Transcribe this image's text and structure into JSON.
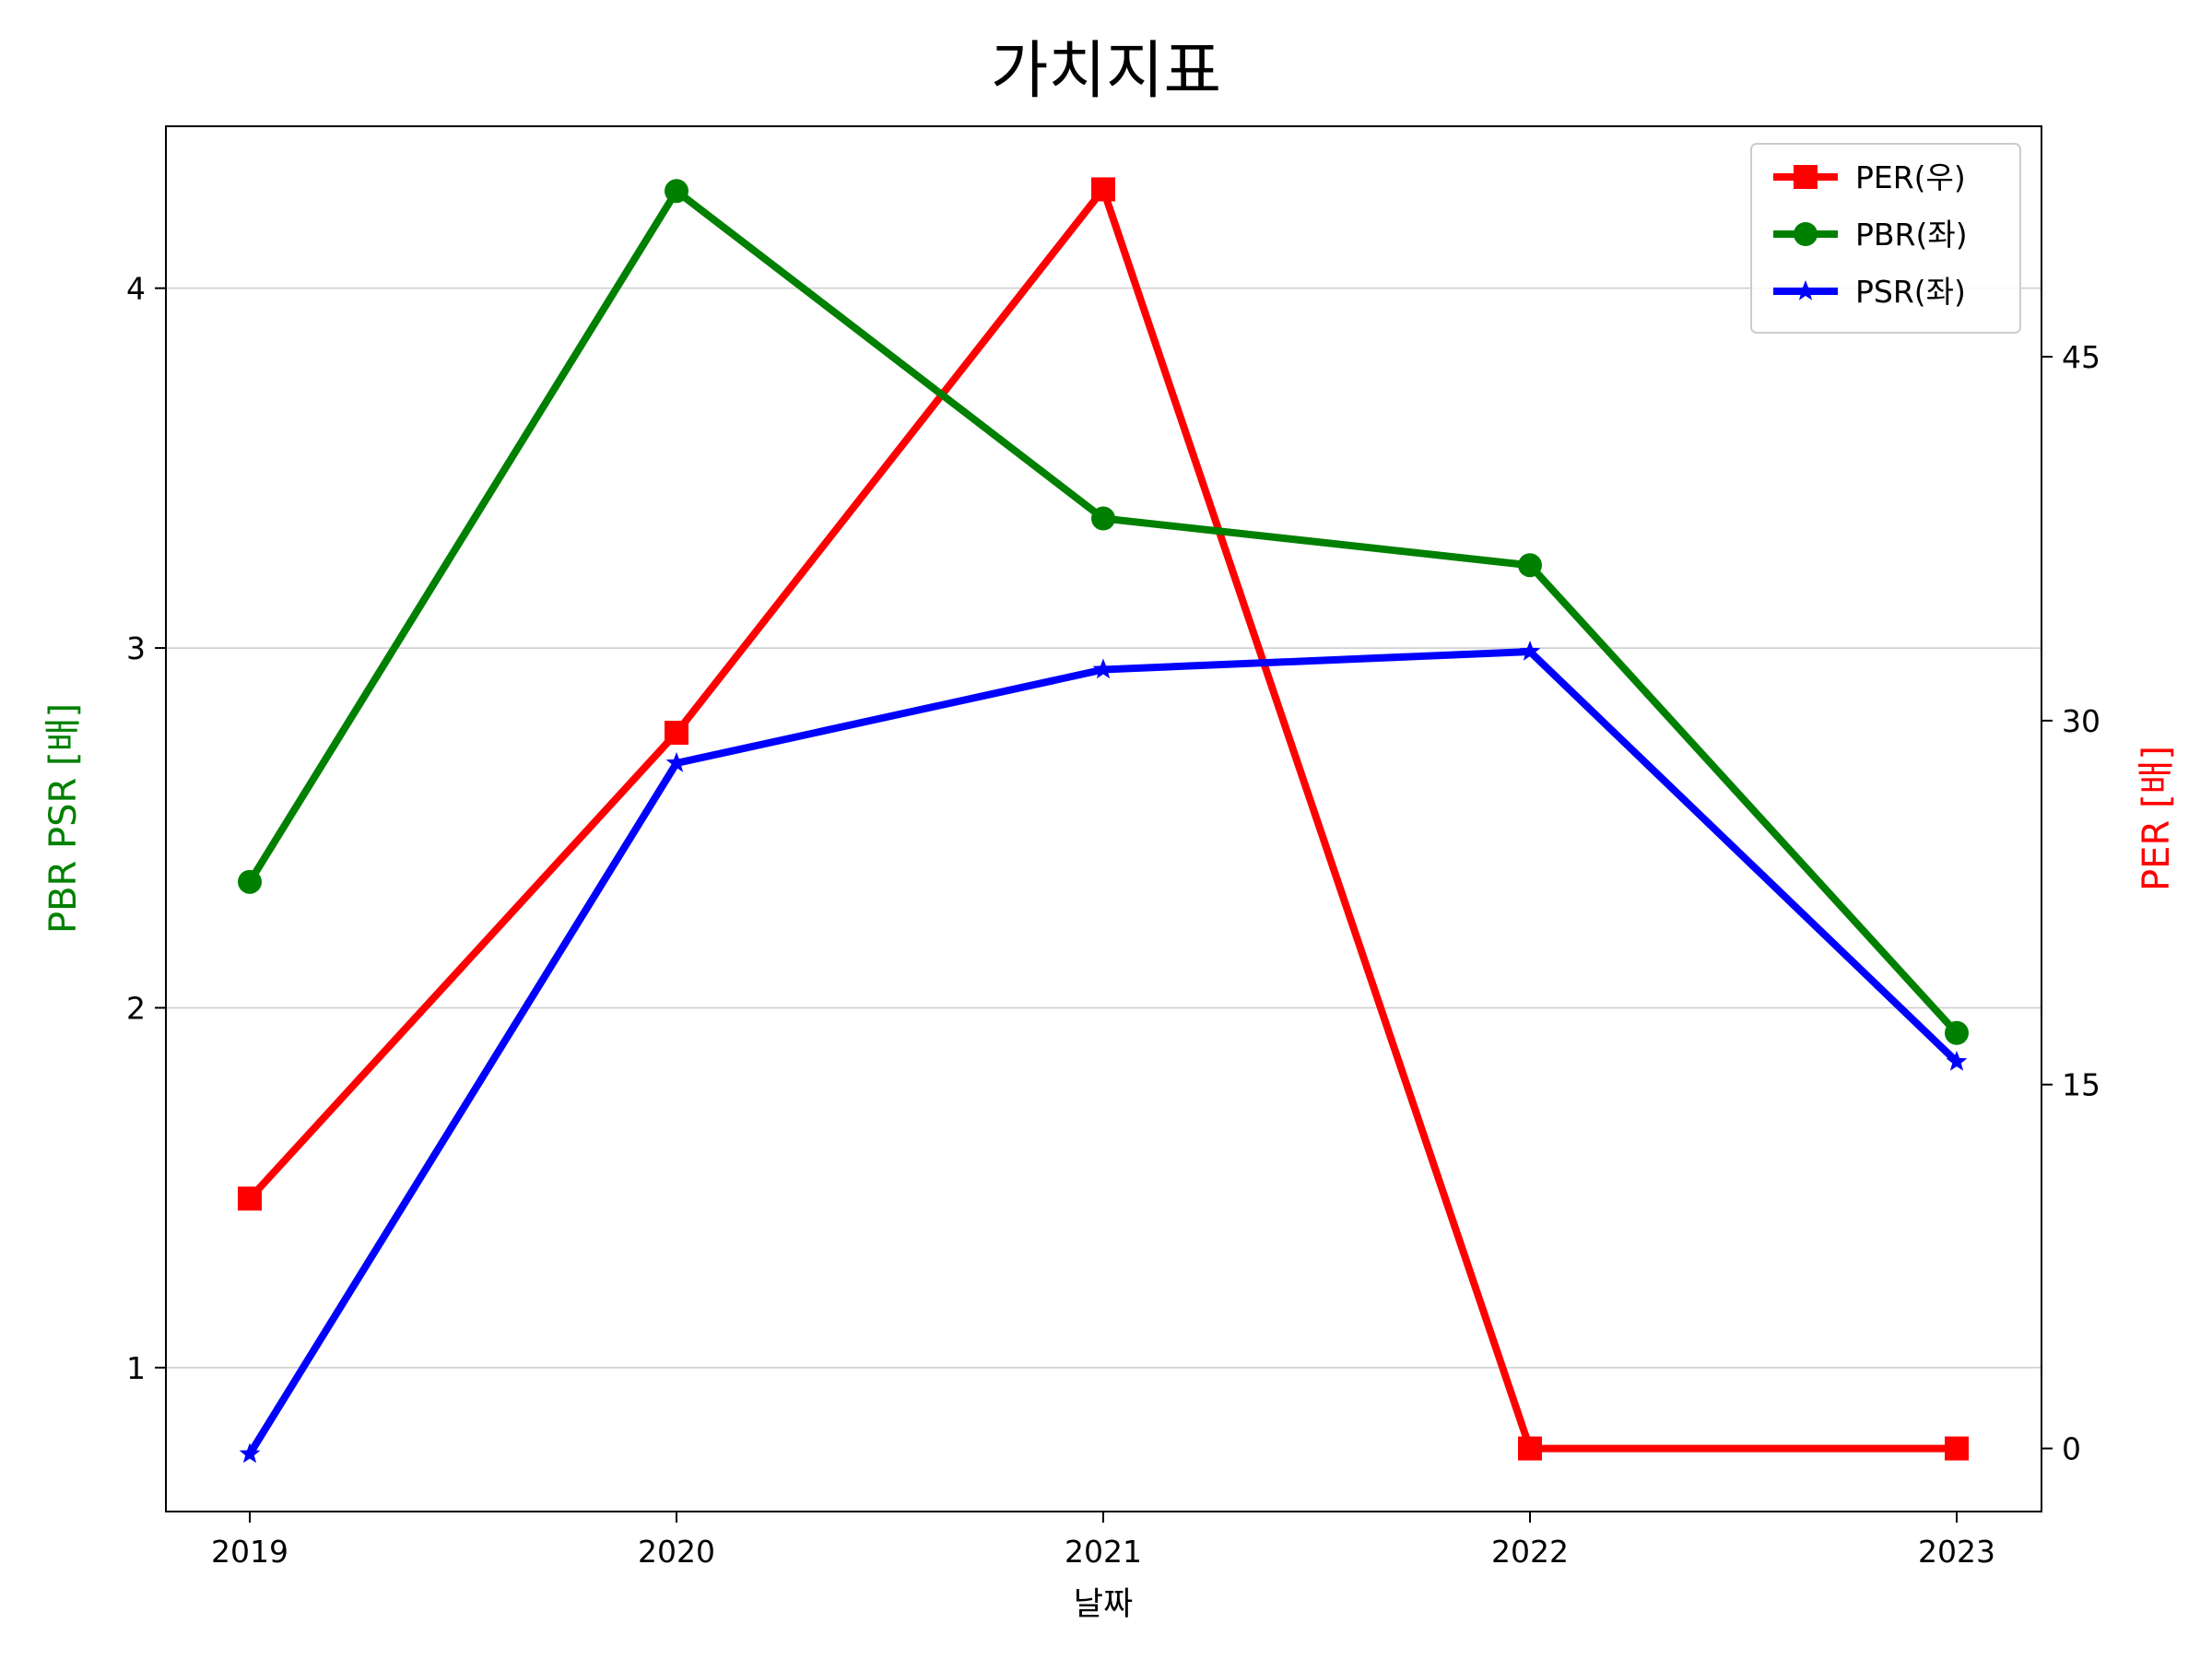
{
  "chart_data": {
    "type": "line",
    "title": "가치지표",
    "xlabel": "날짜",
    "categories": [
      "2019",
      "2020",
      "2021",
      "2022",
      "2023"
    ],
    "left_axis": {
      "label": "PBR PSR [배]",
      "label_color": "#008000",
      "range": [
        0.6,
        4.45
      ],
      "ticks": [
        1,
        2,
        3,
        4
      ]
    },
    "right_axis": {
      "label": "PER [배]",
      "label_color": "#ff0000",
      "range": [
        -2.6,
        54.5
      ],
      "ticks": [
        0,
        15,
        30,
        45
      ]
    },
    "grid": "horizontal (left axis)",
    "legend_position": "upper right",
    "series": [
      {
        "name": "PER(우)",
        "axis": "right",
        "color": "#ff0000",
        "marker": "square",
        "values": [
          10.3,
          29.5,
          51.9,
          0.0,
          0.0
        ]
      },
      {
        "name": "PBR(좌)",
        "axis": "left",
        "color": "#008000",
        "marker": "circle",
        "values": [
          2.35,
          4.27,
          3.36,
          3.23,
          1.93
        ]
      },
      {
        "name": "PSR(좌)",
        "axis": "left",
        "color": "#0000ff",
        "marker": "star",
        "values": [
          0.76,
          2.68,
          2.94,
          2.99,
          1.85
        ]
      }
    ]
  }
}
